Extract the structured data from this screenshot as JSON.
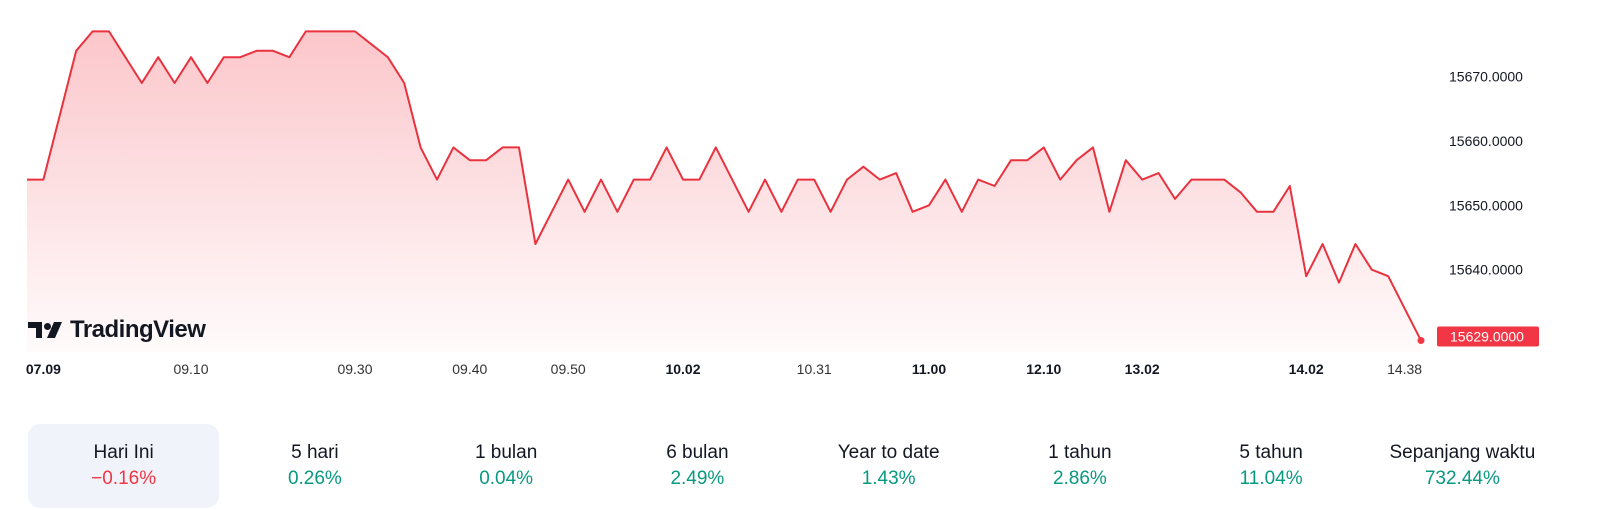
{
  "brand": {
    "logo_text": "TradingView"
  },
  "colors": {
    "line": "#e8333f",
    "negative": "#f23645",
    "positive": "#089981",
    "active_bg": "#f0f3fa"
  },
  "chart_data": {
    "type": "area",
    "ylim": [
      15628,
      15678
    ],
    "y_ticks": [
      "15670.0000",
      "15660.0000",
      "15650.0000",
      "15640.0000"
    ],
    "last_value_label": "15629.0000",
    "x_tick_labels": [
      {
        "label": "07.09",
        "bold": true,
        "index": 1
      },
      {
        "label": "09.10",
        "bold": false,
        "index": 10
      },
      {
        "label": "09.30",
        "bold": false,
        "index": 20
      },
      {
        "label": "09.40",
        "bold": false,
        "index": 27
      },
      {
        "label": "09.50",
        "bold": false,
        "index": 33
      },
      {
        "label": "10.02",
        "bold": true,
        "index": 40
      },
      {
        "label": "10.31",
        "bold": false,
        "index": 48
      },
      {
        "label": "11.00",
        "bold": true,
        "index": 55
      },
      {
        "label": "12.10",
        "bold": true,
        "index": 62
      },
      {
        "label": "13.02",
        "bold": true,
        "index": 68
      },
      {
        "label": "14.02",
        "bold": true,
        "index": 78
      },
      {
        "label": "14.38",
        "bold": false,
        "index": 84
      }
    ],
    "values": [
      15654,
      15654,
      15664,
      15674,
      15677,
      15677,
      15673,
      15669,
      15673,
      15669,
      15673,
      15669,
      15673,
      15673,
      15674,
      15674,
      15673,
      15677,
      15677,
      15677,
      15677,
      15675,
      15673,
      15669,
      15659,
      15654,
      15659,
      15657,
      15657,
      15659,
      15659,
      15644,
      15649,
      15654,
      15649,
      15654,
      15649,
      15654,
      15654,
      15659,
      15654,
      15654,
      15659,
      15654,
      15649,
      15654,
      15649,
      15654,
      15654,
      15649,
      15654,
      15656,
      15654,
      15655,
      15649,
      15650,
      15654,
      15649,
      15654,
      15653,
      15657,
      15657,
      15659,
      15654,
      15657,
      15659,
      15649,
      15657,
      15654,
      15655,
      15651,
      15654,
      15654,
      15654,
      15652,
      15649,
      15649,
      15653,
      15639,
      15644,
      15638,
      15644,
      15640,
      15639,
      15634,
      15629
    ]
  },
  "ranges": [
    {
      "label": "Hari Ini",
      "value": "−0.16%",
      "trend": "neg",
      "active": true
    },
    {
      "label": "5 hari",
      "value": "0.26%",
      "trend": "pos",
      "active": false
    },
    {
      "label": "1 bulan",
      "value": "0.04%",
      "trend": "pos",
      "active": false
    },
    {
      "label": "6 bulan",
      "value": "2.49%",
      "trend": "pos",
      "active": false
    },
    {
      "label": "Year to date",
      "value": "1.43%",
      "trend": "pos",
      "active": false
    },
    {
      "label": "1 tahun",
      "value": "2.86%",
      "trend": "pos",
      "active": false
    },
    {
      "label": "5 tahun",
      "value": "11.04%",
      "trend": "pos",
      "active": false
    },
    {
      "label": "Sepanjang waktu",
      "value": "732.44%",
      "trend": "pos",
      "active": false
    }
  ]
}
